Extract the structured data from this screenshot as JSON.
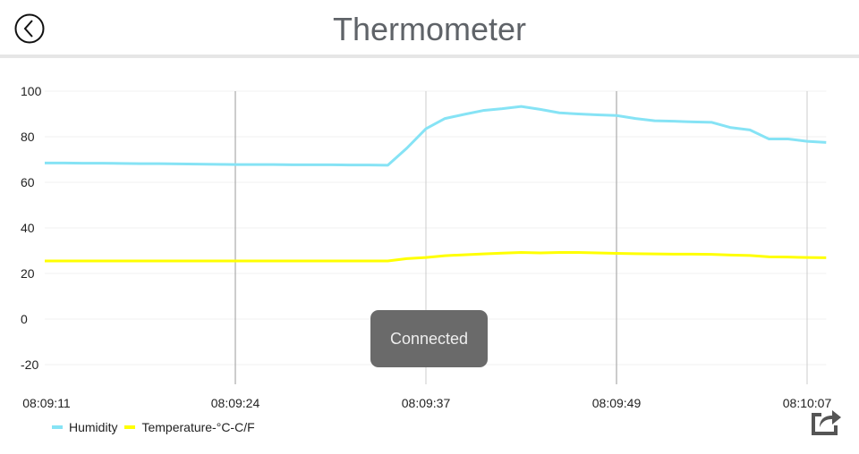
{
  "header": {
    "title": "Thermometer",
    "back_icon": "back-arrow-circle-icon"
  },
  "toast": {
    "text": "Connected"
  },
  "share_icon": "share-icon",
  "chart_data": {
    "type": "line",
    "title": "",
    "xlabel": "",
    "ylabel": "",
    "ylim": [
      -20,
      100
    ],
    "yticks": [
      -20,
      0,
      20,
      40,
      60,
      80,
      100
    ],
    "x": [
      0,
      1,
      2,
      3,
      4,
      5,
      6,
      7,
      8,
      9,
      10,
      11,
      12,
      13,
      14,
      15,
      16,
      17,
      18,
      19,
      20,
      21,
      22,
      23,
      24,
      25,
      26,
      27,
      28,
      29,
      30,
      31,
      32,
      33,
      34,
      35,
      36,
      37,
      38,
      39,
      40,
      41
    ],
    "xtick_labels": [
      {
        "index": 0,
        "label": "08:09:11"
      },
      {
        "index": 10,
        "label": "08:09:24"
      },
      {
        "index": 20,
        "label": "08:09:37"
      },
      {
        "index": 30,
        "label": "08:09:49"
      },
      {
        "index": 40,
        "label": "08:10:07"
      }
    ],
    "grid": true,
    "legend_position": "bottom-left",
    "series": [
      {
        "name": "Humidity",
        "color": "#86e3f5",
        "values": [
          68.5,
          68.5,
          68.4,
          68.4,
          68.3,
          68.2,
          68.2,
          68.1,
          68.0,
          67.9,
          67.8,
          67.8,
          67.8,
          67.7,
          67.7,
          67.7,
          67.6,
          67.6,
          67.5,
          75,
          83.5,
          88,
          89.8,
          91.5,
          92.3,
          93.3,
          92,
          90.5,
          90,
          89.6,
          89.3,
          88,
          87,
          86.8,
          86.5,
          86.3,
          84,
          83,
          79,
          79,
          78,
          77.5
        ]
      },
      {
        "name": "Temperature-°C-C/F",
        "color": "#ffff00",
        "values": [
          25.5,
          25.5,
          25.5,
          25.5,
          25.5,
          25.5,
          25.5,
          25.5,
          25.5,
          25.5,
          25.5,
          25.5,
          25.5,
          25.5,
          25.5,
          25.5,
          25.5,
          25.5,
          25.5,
          26.5,
          27,
          27.8,
          28.2,
          28.6,
          28.9,
          29.2,
          29,
          29.2,
          29.2,
          29,
          28.8,
          28.7,
          28.6,
          28.5,
          28.5,
          28.4,
          28.1,
          27.9,
          27.3,
          27.2,
          27,
          26.9
        ]
      }
    ]
  }
}
